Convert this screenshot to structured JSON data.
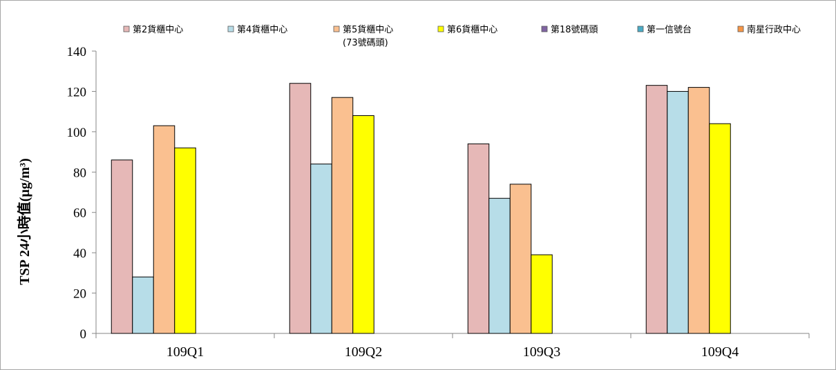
{
  "chart_data": {
    "type": "bar",
    "categories": [
      "109Q1",
      "109Q2",
      "109Q3",
      "109Q4"
    ],
    "series": [
      {
        "name": "第2貨櫃中心",
        "color": "#e6b8b7",
        "values": [
          86,
          124,
          94,
          123
        ]
      },
      {
        "name": "第4貨櫃中心",
        "color": "#b7dde8",
        "values": [
          28,
          84,
          67,
          120
        ]
      },
      {
        "name": "第5貨櫃中心\n(73號碼頭)",
        "color": "#fac090",
        "values": [
          103,
          117,
          74,
          122
        ]
      },
      {
        "name": "第6貨櫃中心",
        "color": "#ffff00",
        "values": [
          92,
          108,
          39,
          104
        ]
      },
      {
        "name": "第18號碼頭",
        "color": "#8064a2",
        "values": [
          null,
          null,
          null,
          null
        ]
      },
      {
        "name": "第一信號台",
        "color": "#4bacc6",
        "values": [
          null,
          null,
          null,
          null
        ]
      },
      {
        "name": "南星行政中心",
        "color": "#f79646",
        "values": [
          null,
          null,
          null,
          null
        ]
      }
    ],
    "title": "",
    "xlabel": "",
    "ylabel": "TSP 24小時值(μg/m³)",
    "ylim": [
      0,
      140
    ],
    "yticks": [
      0,
      20,
      40,
      60,
      80,
      100,
      120,
      140
    ],
    "grid": false,
    "legend_position": "top"
  }
}
